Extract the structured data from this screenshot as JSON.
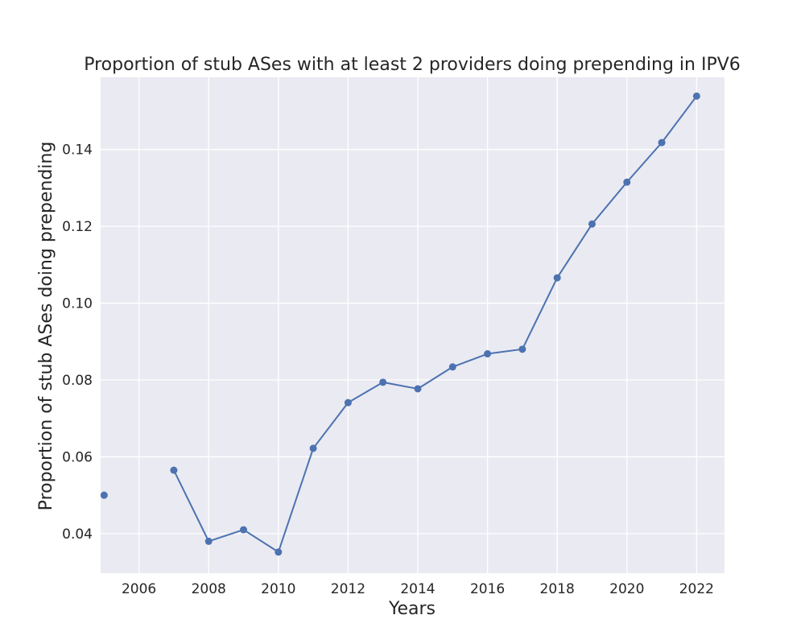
{
  "chart_data": {
    "type": "line",
    "title": "Proportion of stub ASes with at least 2 providers doing prepending in IPV6",
    "xlabel": "Years",
    "ylabel": "Proportion of stub ASes doing prepending",
    "xlim": [
      2004.9,
      2022.8
    ],
    "ylim": [
      0.0297,
      0.1588
    ],
    "xticks": [
      2006,
      2008,
      2010,
      2012,
      2014,
      2016,
      2018,
      2020,
      2022
    ],
    "yticks": [
      0.04,
      0.06,
      0.08,
      0.1,
      0.12,
      0.14
    ],
    "xtick_labels": [
      "2006",
      "2008",
      "2010",
      "2012",
      "2014",
      "2016",
      "2018",
      "2020",
      "2022"
    ],
    "ytick_labels": [
      "0.04",
      "0.06",
      "0.08",
      "0.10",
      "0.12",
      "0.14"
    ],
    "grid": true,
    "style": "seaborn-darkgrid",
    "colors": {
      "background": "#eaeaf2",
      "grid": "#ffffff",
      "line": "#4c72b0"
    },
    "series": [
      {
        "x": [
          2005,
          2006,
          2007,
          2008,
          2009,
          2010,
          2011,
          2012,
          2013,
          2014,
          2015,
          2016,
          2017,
          2018,
          2019,
          2020,
          2021,
          2022
        ],
        "values": [
          0.05,
          null,
          0.0565,
          0.038,
          0.041,
          0.0352,
          0.0622,
          0.0741,
          0.0794,
          0.0777,
          0.0834,
          0.0868,
          0.088,
          0.1066,
          0.1206,
          0.1315,
          0.1418,
          0.1539
        ]
      }
    ]
  }
}
